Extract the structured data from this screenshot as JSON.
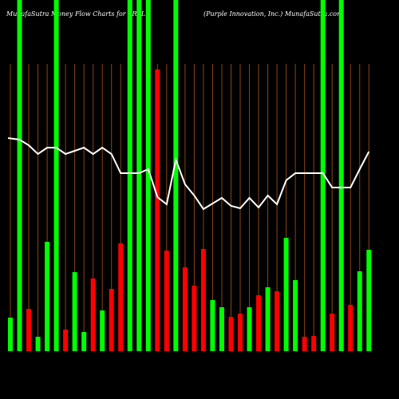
{
  "chart_data": {
    "type": "bar",
    "title": "MunafaSutra  Money Flow  Charts for PRPL",
    "subtitle": "(Purple  Innovation,  Inc.) MunafaSutra.com",
    "values": [
      42,
      440,
      53,
      18,
      137,
      440,
      27,
      99,
      24,
      91,
      51,
      78,
      135,
      440,
      440,
      440,
      353,
      126,
      440,
      105,
      82,
      128,
      64,
      55,
      43,
      47,
      55,
      70,
      80,
      75,
      142,
      89,
      18,
      19,
      440,
      47,
      440,
      58,
      100,
      127
    ],
    "colors": [
      "#00ff00",
      "#00ff00",
      "#ff0000",
      "#00ff00",
      "#00ff00",
      "#00ff00",
      "#ff0000",
      "#00ff00",
      "#00ff00",
      "#ff0000",
      "#00ff00",
      "#ff0000",
      "#ff0000",
      "#00ff00",
      "#00ff00",
      "#00ff00",
      "#ff0000",
      "#ff0000",
      "#00ff00",
      "#ff0000",
      "#ff0000",
      "#ff0000",
      "#00ff00",
      "#00ff00",
      "#ff0000",
      "#ff0000",
      "#00ff00",
      "#ff0000",
      "#00ff00",
      "#ff0000",
      "#00ff00",
      "#00ff00",
      "#ff0000",
      "#ff0000",
      "#00ff00",
      "#ff0000",
      "#00ff00",
      "#ff0000",
      "#00ff00",
      "#00ff00"
    ],
    "line_values": [
      267,
      265,
      258,
      247,
      255,
      255,
      247,
      251,
      255,
      247,
      255,
      247,
      223,
      223,
      223,
      228,
      193,
      184,
      240,
      209,
      195,
      178,
      185,
      192,
      182,
      179,
      192,
      180,
      195,
      184,
      214,
      223,
      223,
      223,
      223,
      205,
      205,
      205,
      228,
      250
    ],
    "line_color": "#ffffff",
    "grid_color": "#8b4513",
    "ylim": [
      0,
      440
    ]
  }
}
